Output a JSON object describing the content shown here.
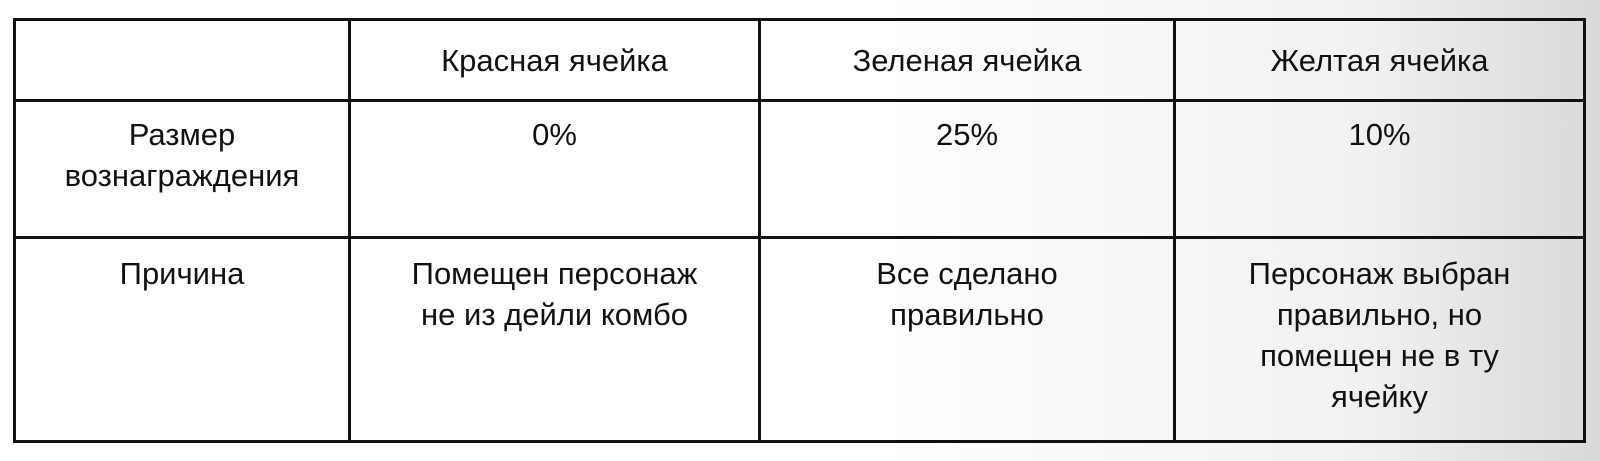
{
  "table": {
    "headers": [
      "",
      "Красная ячейка",
      "Зеленая ячейка",
      "Желтая ячейка"
    ],
    "rows": [
      {
        "label": [
          "Размер",
          "вознаграждения"
        ],
        "cells": [
          [
            "0%"
          ],
          [
            "25%"
          ],
          [
            "10%"
          ]
        ]
      },
      {
        "label": [
          "Причина"
        ],
        "cells": [
          [
            "Помещен персонаж",
            "не из дейли комбо"
          ],
          [
            "Все сделано",
            "правильно"
          ],
          [
            "Персонаж выбран",
            "правильно, но",
            "помещен не в ту",
            "ячейку"
          ]
        ]
      }
    ]
  }
}
